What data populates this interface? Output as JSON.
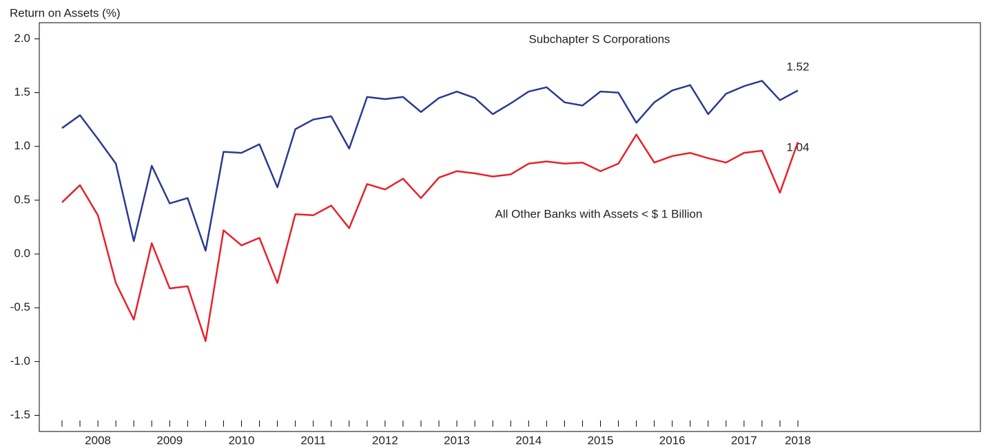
{
  "chart_data": {
    "type": "line",
    "y_axis_label": "Return on Assets (%)",
    "categories": [
      null,
      null,
      "2008",
      null,
      null,
      null,
      "2009",
      null,
      null,
      null,
      "2010",
      null,
      null,
      null,
      "2011",
      null,
      null,
      null,
      "2012",
      null,
      null,
      null,
      "2013",
      null,
      null,
      null,
      "2014",
      null,
      null,
      null,
      "2015",
      null,
      null,
      null,
      "2016",
      null,
      null,
      null,
      "2017",
      null,
      null,
      "2018"
    ],
    "series": [
      {
        "name": "Subchapter S Corporations",
        "color": "#2b3990",
        "values": [
          1.17,
          1.29,
          1.07,
          0.84,
          0.12,
          0.82,
          0.47,
          0.52,
          0.03,
          0.95,
          0.94,
          1.02,
          0.62,
          1.16,
          1.25,
          1.28,
          0.98,
          1.46,
          1.44,
          1.46,
          1.32,
          1.45,
          1.51,
          1.45,
          1.3,
          1.4,
          1.51,
          1.55,
          1.41,
          1.38,
          1.51,
          1.5,
          1.22,
          1.41,
          1.52,
          1.57,
          1.3,
          1.49,
          1.56,
          1.61,
          1.43,
          1.52
        ]
      },
      {
        "name": "All Other Banks with Assets < $ 1 Billion",
        "color": "#e8202a",
        "values": [
          0.48,
          0.64,
          0.36,
          -0.27,
          -0.61,
          0.1,
          -0.32,
          -0.3,
          -0.81,
          0.22,
          0.08,
          0.15,
          -0.27,
          0.37,
          0.36,
          0.45,
          0.24,
          0.65,
          0.6,
          0.7,
          0.52,
          0.71,
          0.77,
          0.75,
          0.72,
          0.74,
          0.84,
          0.86,
          0.84,
          0.85,
          0.77,
          0.84,
          1.11,
          0.85,
          0.91,
          0.94,
          0.89,
          0.85,
          0.94,
          0.96,
          0.57,
          1.04
        ]
      }
    ],
    "ylim": [
      -1.65,
      2.15
    ],
    "yticks": [
      {
        "value": 2,
        "label": "2.0"
      },
      {
        "value": 1.5,
        "label": "1.5"
      },
      {
        "value": 1,
        "label": "1.0"
      },
      {
        "value": 0.5,
        "label": "0.5"
      },
      {
        "value": 0,
        "label": "0.0"
      },
      -0.5,
      {
        "value": -1,
        "label": "-1.0"
      },
      -1.5
    ],
    "grid": false
  }
}
